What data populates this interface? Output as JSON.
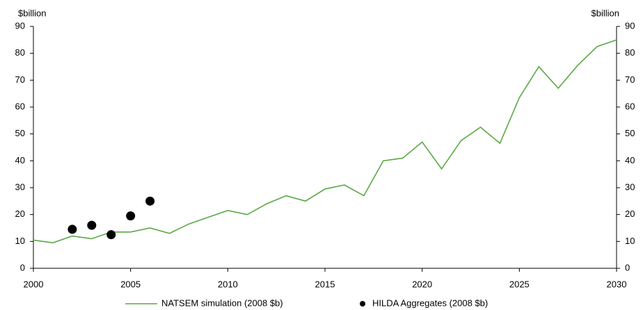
{
  "chart_data": {
    "type": "line",
    "y_label": "$billion",
    "y2_label": "$billion",
    "xlim": [
      2000,
      2030
    ],
    "xticks": [
      2000,
      2005,
      2010,
      2015,
      2020,
      2025,
      2030
    ],
    "ylim": [
      0,
      90
    ],
    "yticks": [
      0,
      10,
      20,
      30,
      40,
      50,
      60,
      70,
      80,
      90
    ],
    "y2lim": [
      0,
      90
    ],
    "y2ticks": [
      0,
      10,
      20,
      30,
      40,
      50,
      60,
      70,
      80,
      90
    ],
    "grid": false,
    "legend": "bottom",
    "series": [
      {
        "name": "NATSEM simulation (2008 $b)",
        "type": "line",
        "color": "#5aa845",
        "x": [
          2000,
          2001,
          2002,
          2003,
          2004,
          2005,
          2006,
          2007,
          2008,
          2009,
          2010,
          2011,
          2012,
          2013,
          2014,
          2015,
          2016,
          2017,
          2018,
          2019,
          2020,
          2021,
          2022,
          2023,
          2024,
          2025,
          2026,
          2027,
          2028,
          2029,
          2030
        ],
        "values": [
          10.5,
          9.5,
          12,
          11,
          13.5,
          13.5,
          15,
          13,
          16.5,
          19,
          21.5,
          20,
          24,
          27,
          25,
          29.5,
          31,
          27,
          40,
          41,
          47,
          37,
          47.5,
          52.5,
          46.5,
          63.5,
          75,
          67,
          75.5,
          82.5,
          85
        ]
      },
      {
        "name": "HILDA Aggregates (2008 $b)",
        "type": "scatter",
        "color": "#000000",
        "x": [
          2002,
          2003,
          2004,
          2005,
          2006
        ],
        "values": [
          14.5,
          16,
          12.5,
          19.5,
          25
        ]
      }
    ]
  }
}
